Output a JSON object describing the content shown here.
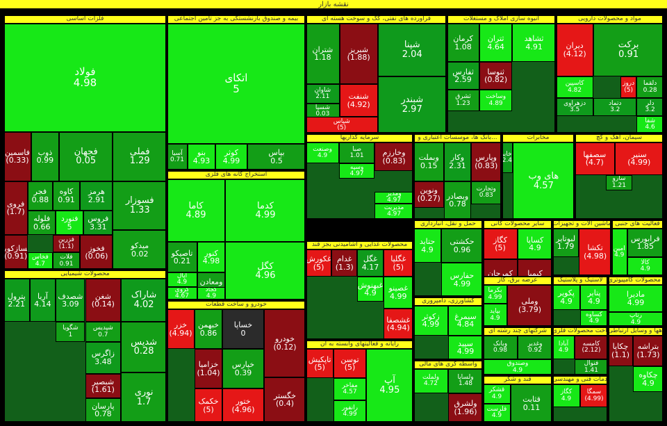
{
  "chart_data": {
    "type": "treemap",
    "title": "نقشه بازار",
    "colors": {
      "up_strong": "#17e817",
      "up_mid": "#0f9a1c",
      "up_light": "#139e17",
      "down": "#8b0e14",
      "down_strong": "#e51717",
      "flat": "#2b2b2b",
      "header": "#ffff1a"
    },
    "sectors": [
      {
        "name": "فلزات اساسی",
        "tiles": [
          {
            "n": "فولاد",
            "v": "4.98"
          },
          {
            "n": "فملی",
            "v": "1.29"
          },
          {
            "n": "فجهان",
            "v": "0.05"
          },
          {
            "n": "ذوب",
            "v": "0.99"
          },
          {
            "n": "فاسمین",
            "v": "(0.33)"
          },
          {
            "n": "هرمز",
            "v": "2.91"
          },
          {
            "n": "کاوه",
            "v": "0.91"
          },
          {
            "n": "فجر",
            "v": "0.88"
          },
          {
            "n": "فروی",
            "v": "(1.7)"
          },
          {
            "n": "فسوزار",
            "v": "1.33"
          },
          {
            "n": "فروس",
            "v": "3.31"
          },
          {
            "n": "فنورد",
            "v": "5"
          },
          {
            "n": "فلوله",
            "v": "0.66"
          },
          {
            "n": "فسازکویر",
            "v": "(0.91)"
          },
          {
            "n": "میدکو",
            "v": "0.02"
          },
          {
            "n": "فخوز",
            "v": "(0.06)"
          },
          {
            "n": "فزرین",
            "v": "(1.1)"
          },
          {
            "n": "فخاس",
            "v": "4.7"
          },
          {
            "n": "فلات",
            "v": "0.91"
          }
        ]
      },
      {
        "name": "بیمه و صندوق بازنشستگی به جز تامین اجتماعی",
        "tiles": [
          {
            "n": "اتکای",
            "v": "5"
          },
          {
            "n": "بپاس",
            "v": "0.5"
          },
          {
            "n": "کوثر",
            "v": "4.99"
          },
          {
            "n": "بنو",
            "v": "4.93"
          },
          {
            "n": "آسیا",
            "v": "0.71"
          }
        ]
      },
      {
        "name": "فرآورده های نفتی، کک و سوخت هسته ای",
        "tiles": [
          {
            "n": "شپنا",
            "v": "2.04"
          },
          {
            "n": "شبریز",
            "v": "(1.88)"
          },
          {
            "n": "شتران",
            "v": "1.18"
          },
          {
            "n": "شبندر",
            "v": "2.97"
          },
          {
            "n": "شنفت",
            "v": "(4.92)"
          },
          {
            "n": "شاوان",
            "v": "2.11"
          },
          {
            "n": "شسپا",
            "v": "0.03"
          },
          {
            "n": "شپاس",
            "v": "(5)"
          }
        ]
      },
      {
        "name": "انبوه سازی املاک و مستغلات",
        "tiles": [
          {
            "n": "ثشاهد",
            "v": "4.91"
          },
          {
            "n": "ثتران",
            "v": "4.64"
          },
          {
            "n": "کرمان",
            "v": "1.08"
          },
          {
            "n": "ثنوسا",
            "v": "(0.82)"
          },
          {
            "n": "ثفارس",
            "v": "2.59"
          },
          {
            "n": "وساخت",
            "v": "4.89"
          },
          {
            "n": "ثشرق",
            "v": "1.23"
          }
        ]
      },
      {
        "name": "مواد و محصولات دارویی",
        "tiles": [
          {
            "n": "برکت",
            "v": "0.91"
          },
          {
            "n": "دیران",
            "v": "(4.12)"
          },
          {
            "n": "دلقما",
            "v": "0.28"
          },
          {
            "n": "دروز",
            "v": "(5)"
          },
          {
            "n": "کاسپین",
            "v": "4.82"
          },
          {
            "n": "دلر",
            "v": "3.2"
          },
          {
            "n": "شفا",
            "v": "4.6"
          },
          {
            "n": "دتماد",
            "v": "3.2"
          },
          {
            "n": "دزهراوی",
            "v": "3.5"
          }
        ]
      },
      {
        "name": "سرمایه گذاریها",
        "tiles": [
          {
            "n": "وخارزم",
            "v": "(0.83)"
          },
          {
            "n": "صبا",
            "v": "1.01"
          },
          {
            "n": "وصنعت",
            "v": "4.9"
          },
          {
            "n": "ومدیر",
            "v": "4.97"
          },
          {
            "n": "وسپه",
            "v": "4.97"
          },
          {
            "n": "مدیریت",
            "v": "4.97"
          }
        ]
      },
      {
        "name": "بانک ها، موسسات اعتباری و...",
        "tiles": [
          {
            "n": "وپارس",
            "v": "(0.83)"
          },
          {
            "n": "وکار",
            "v": "2.31"
          },
          {
            "n": "وبصادر",
            "v": "0.78"
          },
          {
            "n": "وتجارت",
            "v": "0.83"
          },
          {
            "n": "ونوین",
            "v": "(0.27)"
          },
          {
            "n": "وبملت",
            "v": "0.15"
          }
        ]
      },
      {
        "name": "مخابرات",
        "tiles": [
          {
            "n": "های وب",
            "v": "4.57"
          },
          {
            "n": "اخابر",
            "v": "2.4"
          }
        ]
      },
      {
        "name": "سیمان، آهک و گچ",
        "tiles": [
          {
            "n": "سنیر",
            "v": "(4.99)"
          },
          {
            "n": "سصفها",
            "v": "(4.7)"
          },
          {
            "n": "سارو",
            "v": "1.21"
          }
        ]
      },
      {
        "name": "استخراج کانه های فلزی",
        "tiles": [
          {
            "n": "کدما",
            "v": "4.99"
          },
          {
            "n": "کاما",
            "v": "4.89"
          },
          {
            "n": "کگل",
            "v": "4.96"
          },
          {
            "n": "کنور",
            "v": "4.98"
          },
          {
            "n": "تاصیکو",
            "v": "0.21"
          },
          {
            "n": "ومعادن",
            "v": "1.24"
          },
          {
            "n": "اپال",
            "v": "4.9"
          },
          {
            "n": "کجاد",
            "v": "4.9"
          },
          {
            "n": "کروی",
            "v": "4.67"
          }
        ]
      },
      {
        "name": "حمل و نقل، انبارداری",
        "tiles": [
          {
            "n": "حکشتی",
            "v": "0.96"
          },
          {
            "n": "حتاید",
            "v": "4.9"
          },
          {
            "n": "حفارس",
            "v": "4.99"
          }
        ]
      },
      {
        "name": "سایر محصولات کانی",
        "tiles": [
          {
            "n": "کساپا",
            "v": "4.9"
          },
          {
            "n": "کگاز",
            "v": "(5)"
          },
          {
            "n": "کیمیا",
            "v": "(0.98)"
          },
          {
            "n": "کمرجان",
            "v": "(1.78)"
          }
        ]
      },
      {
        "name": "ماشین آلات و تجهیزات",
        "tiles": [
          {
            "n": "تکشا",
            "v": "(4.98)"
          },
          {
            "n": "لبوتایر",
            "v": "1.79"
          }
        ]
      },
      {
        "name": "فعالیت های جنبی",
        "tiles": [
          {
            "n": "فرابورس",
            "v": "1.85"
          },
          {
            "n": "امین",
            "v": "4.9"
          },
          {
            "n": "کالا",
            "v": "4.9"
          }
        ]
      },
      {
        "name": "محصولات شیمیایی",
        "tiles": [
          {
            "n": "شاراک",
            "v": "4.02"
          },
          {
            "n": "شغن",
            "v": "(0.14)"
          },
          {
            "n": "شصدف",
            "v": "3.09"
          },
          {
            "n": "آریا",
            "v": "4.14"
          },
          {
            "n": "پترول",
            "v": "2.21"
          },
          {
            "n": "شدیس",
            "v": "0.28"
          },
          {
            "n": "زاگرس",
            "v": "3.48"
          },
          {
            "n": "شپدیس",
            "v": "0.7"
          },
          {
            "n": "شگویا",
            "v": "1"
          },
          {
            "n": "نوری",
            "v": "1.7"
          },
          {
            "n": "شبصیر",
            "v": "(1.61)"
          },
          {
            "n": "پارسان",
            "v": "0.78"
          }
        ]
      },
      {
        "name": "خودرو و ساخت قطعات",
        "tiles": [
          {
            "n": "خودرو",
            "v": "(0.12)"
          },
          {
            "n": "خساپا",
            "v": "0"
          },
          {
            "n": "خبهمن",
            "v": "0.86"
          },
          {
            "n": "خزر",
            "v": "(4.94)"
          },
          {
            "n": "خگستر",
            "v": "(0.4)"
          },
          {
            "n": "خپارس",
            "v": "0.39"
          },
          {
            "n": "خزامیا",
            "v": "(1.04)"
          },
          {
            "n": "ختور",
            "v": "(4.96)"
          },
          {
            "n": "خکمک",
            "v": "(5)"
          }
        ]
      },
      {
        "name": "محصولات غذایی و آشامیدنی بجز قند",
        "tiles": [
          {
            "n": "غگلپا",
            "v": "(5)"
          },
          {
            "n": "غگل",
            "v": "4.17"
          },
          {
            "n": "غدام",
            "v": "(1.3)"
          },
          {
            "n": "غکورش",
            "v": "(5)"
          },
          {
            "n": "غصینو",
            "v": "4.99"
          },
          {
            "n": "غشصفا",
            "v": "(4.94)"
          },
          {
            "n": "غبهنوش",
            "v": "4.9"
          }
        ]
      },
      {
        "name": "رایانه و فعالیتهای وابسته به آن",
        "tiles": [
          {
            "n": "آپ",
            "v": "4.95"
          },
          {
            "n": "توسن",
            "v": "(5)"
          },
          {
            "n": "تاپکیش",
            "v": "(5)"
          },
          {
            "n": "مفاخر",
            "v": "4.57"
          },
          {
            "n": "رانفور",
            "v": "4.99"
          }
        ]
      },
      {
        "name": "کشاورزی، دامپروری",
        "tiles": [
          {
            "n": "سیمرغ",
            "v": "4.84"
          },
          {
            "n": "زکوثر",
            "v": "4.99"
          },
          {
            "n": "سپید",
            "v": "4.99"
          }
        ]
      },
      {
        "name": "عرضه برق، گاز",
        "tiles": [
          {
            "n": "وملی",
            "v": "(3.79)"
          },
          {
            "n": "بکرما",
            "v": "4.99"
          },
          {
            "n": "بپاید",
            "v": "4.9"
          }
        ]
      },
      {
        "name": "شرکتهای چند رشته ای",
        "tiles": [
          {
            "n": "وغدیر",
            "v": "0.92"
          },
          {
            "n": "وبانک",
            "v": "0.98"
          },
          {
            "n": "وصندوق",
            "v": "4.9"
          }
        ]
      },
      {
        "name": "قند و شکر",
        "tiles": [
          {
            "n": "قثابت",
            "v": "0.11"
          },
          {
            "n": "قشکر",
            "v": "4.9"
          },
          {
            "n": "قلرست",
            "v": "4.9"
          }
        ]
      },
      {
        "name": "ساخت محصولات فلزی",
        "tiles": [
          {
            "n": "کامسه",
            "v": "(2.12)"
          },
          {
            "n": "آبادا",
            "v": "4.9"
          },
          {
            "n": "فنوال",
            "v": "1.41"
          }
        ]
      },
      {
        "name": "لاستیک و پلاستیک",
        "tiles": [
          {
            "n": "پتایر",
            "v": "4.9"
          },
          {
            "n": "پکویر",
            "v": "4.9"
          },
          {
            "n": "کساوه",
            "v": "4.9"
          }
        ]
      },
      {
        "name": "تولید محصولات کامپیوتری",
        "tiles": [
          {
            "n": "مادیرا",
            "v": "4.99"
          },
          {
            "n": "رتاپ",
            "v": "4.9"
          }
        ]
      },
      {
        "name": "ساخت دستگاهها و وسایل ارتباطی",
        "tiles": [
          {
            "n": "بتراشه",
            "v": "(1.73)"
          },
          {
            "n": "چکاپا",
            "v": "(1.1)"
          },
          {
            "n": "چکاوه",
            "v": "4.9"
          }
        ]
      },
      {
        "name": "واسطه گری های مالی",
        "tiles": [
          {
            "n": "ولساپا",
            "v": "1.48"
          },
          {
            "n": "ولملت",
            "v": "4.72"
          },
          {
            "n": "ولشرق",
            "v": "(1.96)"
          }
        ]
      },
      {
        "name": "خدمات فنی و مهندسی",
        "tiles": [
          {
            "n": "سمگا",
            "v": "(4.99)"
          },
          {
            "n": "کگاز",
            "v": "4.9"
          }
        ]
      }
    ]
  }
}
